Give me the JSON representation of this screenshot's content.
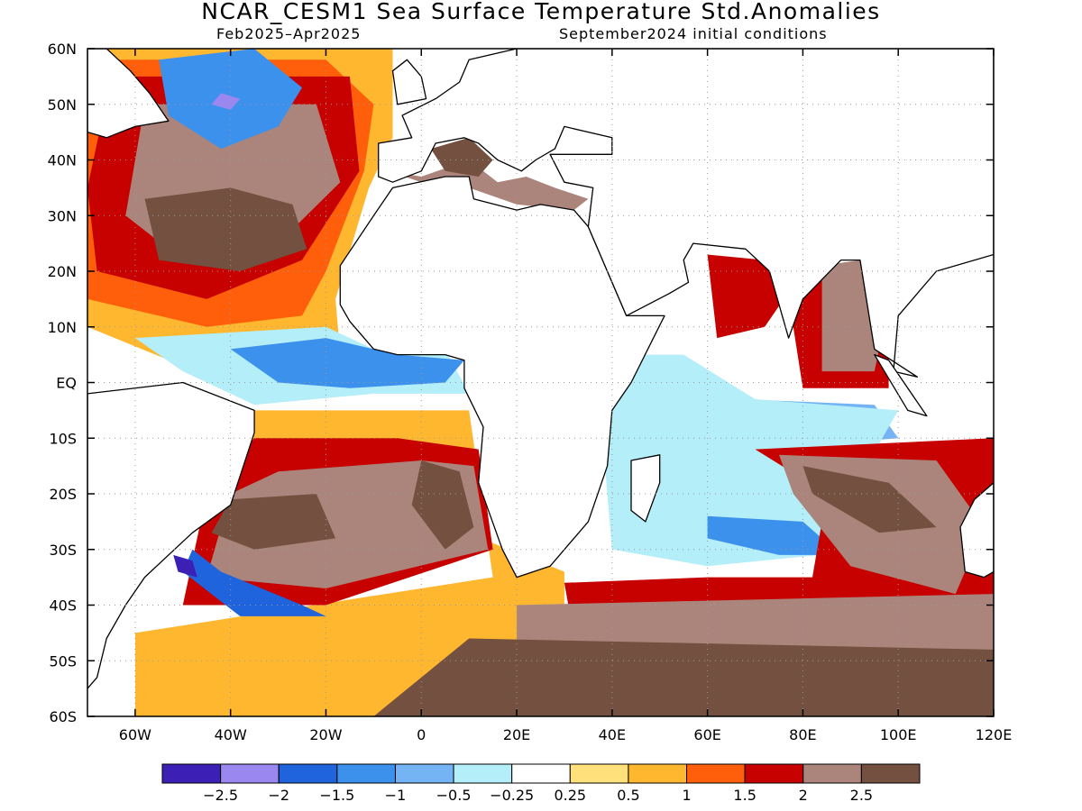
{
  "title": "NCAR_CESM1 Sea Surface Temperature Std.Anomalies",
  "subtitle_left": "Feb2025–Apr2025",
  "subtitle_right": "September2024 initial conditions",
  "map": {
    "lon_range": [
      -70,
      120
    ],
    "lat_range": [
      -60,
      60
    ],
    "lon_ticks": [
      {
        "value": -60,
        "label": "60W"
      },
      {
        "value": -40,
        "label": "40W"
      },
      {
        "value": -20,
        "label": "20W"
      },
      {
        "value": 0,
        "label": "0"
      },
      {
        "value": 20,
        "label": "20E"
      },
      {
        "value": 40,
        "label": "40E"
      },
      {
        "value": 60,
        "label": "60E"
      },
      {
        "value": 80,
        "label": "80E"
      },
      {
        "value": 100,
        "label": "100E"
      },
      {
        "value": 120,
        "label": "120E"
      }
    ],
    "lat_ticks": [
      {
        "value": 60,
        "label": "60N"
      },
      {
        "value": 50,
        "label": "50N"
      },
      {
        "value": 40,
        "label": "40N"
      },
      {
        "value": 30,
        "label": "30N"
      },
      {
        "value": 20,
        "label": "20N"
      },
      {
        "value": 10,
        "label": "10N"
      },
      {
        "value": 0,
        "label": "EQ"
      },
      {
        "value": -10,
        "label": "10S"
      },
      {
        "value": -20,
        "label": "20S"
      },
      {
        "value": -30,
        "label": "30S"
      },
      {
        "value": -40,
        "label": "40S"
      },
      {
        "value": -50,
        "label": "50S"
      },
      {
        "value": -60,
        "label": "60S"
      }
    ],
    "grid": "dotted"
  },
  "colorbar": {
    "colors": [
      "#3c1fb4",
      "#9a87f0",
      "#1f63dd",
      "#3c91ec",
      "#74b4f4",
      "#b3eef9",
      "#ffffff",
      "#ffe07a",
      "#ffb730",
      "#ff5f0a",
      "#c70000",
      "#ab857c",
      "#73503f"
    ],
    "labels": [
      "−2.5",
      "−2",
      "−1.5",
      "−1",
      "−0.5",
      "−0.25",
      "0.25",
      "0.5",
      "1",
      "1.5",
      "2",
      "2.5"
    ]
  },
  "anomaly_regions": [
    {
      "level": "0.5",
      "lonlat": [
        [
          -70,
          60
        ],
        [
          -6,
          60
        ],
        [
          -6,
          44
        ],
        [
          -11,
          35
        ],
        [
          -18,
          15
        ],
        [
          -17,
          5
        ],
        [
          -50,
          3
        ],
        [
          -70,
          10
        ]
      ]
    },
    {
      "level": "1",
      "lonlat": [
        [
          -70,
          58
        ],
        [
          -20,
          58
        ],
        [
          -10,
          50
        ],
        [
          -12,
          38
        ],
        [
          -20,
          20
        ],
        [
          -25,
          12
        ],
        [
          -45,
          10
        ],
        [
          -70,
          15
        ]
      ]
    },
    {
      "level": "1.5",
      "lonlat": [
        [
          -65,
          55
        ],
        [
          -15,
          55
        ],
        [
          -13,
          38
        ],
        [
          -25,
          22
        ],
        [
          -45,
          15
        ],
        [
          -68,
          20
        ],
        [
          -70,
          35
        ]
      ]
    },
    {
      "level": "2",
      "lonlat": [
        [
          -58,
          50
        ],
        [
          -22,
          50
        ],
        [
          -17,
          36
        ],
        [
          -30,
          25
        ],
        [
          -50,
          22
        ],
        [
          -62,
          30
        ]
      ]
    },
    {
      "level": "2.5",
      "lonlat": [
        [
          -58,
          33
        ],
        [
          -40,
          35
        ],
        [
          -27,
          32
        ],
        [
          -24,
          24
        ],
        [
          -38,
          20
        ],
        [
          -55,
          22
        ]
      ]
    },
    {
      "level": "-1",
      "lonlat": [
        [
          -55,
          58
        ],
        [
          -35,
          60
        ],
        [
          -25,
          53
        ],
        [
          -30,
          46
        ],
        [
          -42,
          42
        ],
        [
          -53,
          48
        ]
      ]
    },
    {
      "level": "-2",
      "lonlat": [
        [
          -42,
          52
        ],
        [
          -38,
          51
        ],
        [
          -40,
          49
        ],
        [
          -44,
          50
        ]
      ]
    },
    {
      "level": "-0.25",
      "lonlat": [
        [
          -60,
          8
        ],
        [
          -20,
          10
        ],
        [
          -10,
          6
        ],
        [
          5,
          6
        ],
        [
          10,
          -2
        ],
        [
          -10,
          -2
        ],
        [
          -35,
          -4
        ],
        [
          -50,
          2
        ]
      ]
    },
    {
      "level": "-1",
      "lonlat": [
        [
          -40,
          6
        ],
        [
          -20,
          8
        ],
        [
          -5,
          5
        ],
        [
          9,
          4
        ],
        [
          5,
          0
        ],
        [
          -15,
          -1
        ],
        [
          -30,
          0
        ]
      ]
    },
    {
      "level": "0.5",
      "lonlat": [
        [
          -40,
          -5
        ],
        [
          10,
          -5
        ],
        [
          15,
          -35
        ],
        [
          -60,
          -45
        ],
        [
          -60,
          -60
        ],
        [
          30,
          -60
        ],
        [
          30,
          -34
        ],
        [
          -40,
          -10
        ]
      ]
    },
    {
      "level": "1.5",
      "lonlat": [
        [
          -35,
          -10
        ],
        [
          -5,
          -10
        ],
        [
          12,
          -12
        ],
        [
          15,
          -30
        ],
        [
          -20,
          -40
        ],
        [
          -50,
          -40
        ],
        [
          -45,
          -20
        ]
      ]
    },
    {
      "level": "2",
      "lonlat": [
        [
          -30,
          -16
        ],
        [
          0,
          -14
        ],
        [
          11,
          -15
        ],
        [
          14,
          -30
        ],
        [
          -20,
          -37
        ],
        [
          -45,
          -35
        ],
        [
          -40,
          -20
        ]
      ]
    },
    {
      "level": "2.5",
      "lonlat": [
        [
          -40,
          -21
        ],
        [
          -22,
          -20
        ],
        [
          -18,
          -28
        ],
        [
          -35,
          -30
        ],
        [
          -44,
          -27
        ]
      ]
    },
    {
      "level": "2.5",
      "lonlat": [
        [
          0,
          -14
        ],
        [
          8,
          -16
        ],
        [
          11,
          -26
        ],
        [
          5,
          -30
        ],
        [
          -2,
          -22
        ]
      ]
    },
    {
      "level": "-1.5",
      "lonlat": [
        [
          -48,
          -30
        ],
        [
          -42,
          -34
        ],
        [
          -25,
          -40
        ],
        [
          -20,
          -42
        ],
        [
          -38,
          -42
        ],
        [
          -50,
          -34
        ]
      ]
    },
    {
      "level": "-2.5",
      "lonlat": [
        [
          -52,
          -31
        ],
        [
          -48,
          -32
        ],
        [
          -47,
          -35
        ],
        [
          -51,
          -34
        ]
      ]
    },
    {
      "level": "-0.5",
      "lonlat": [
        [
          40,
          -2
        ],
        [
          95,
          -4
        ],
        [
          100,
          -10
        ],
        [
          70,
          -12
        ],
        [
          50,
          -20
        ],
        [
          40,
          -12
        ]
      ]
    },
    {
      "level": "-0.25",
      "lonlat": [
        [
          40,
          5
        ],
        [
          55,
          5
        ],
        [
          70,
          -3
        ],
        [
          100,
          -5
        ],
        [
          90,
          -20
        ],
        [
          95,
          -30
        ],
        [
          60,
          -33
        ],
        [
          40,
          -30
        ],
        [
          38,
          -10
        ]
      ]
    },
    {
      "level": "-1",
      "lonlat": [
        [
          60,
          -24
        ],
        [
          80,
          -25
        ],
        [
          88,
          -31
        ],
        [
          75,
          -31
        ],
        [
          60,
          -28
        ]
      ]
    },
    {
      "level": "1.5",
      "lonlat": [
        [
          60,
          23
        ],
        [
          72,
          22
        ],
        [
          78,
          10
        ],
        [
          80,
          -1
        ],
        [
          98,
          -1
        ],
        [
          98,
          14
        ],
        [
          92,
          22
        ],
        [
          80,
          20
        ],
        [
          72,
          10
        ],
        [
          62,
          8
        ]
      ]
    },
    {
      "level": "2",
      "lonlat": [
        [
          84,
          21
        ],
        [
          92,
          22
        ],
        [
          97,
          10
        ],
        [
          95,
          2
        ],
        [
          84,
          2
        ]
      ]
    },
    {
      "level": "1.5",
      "lonlat": [
        [
          70,
          -12
        ],
        [
          120,
          -10
        ],
        [
          120,
          -60
        ],
        [
          35,
          -60
        ],
        [
          30,
          -36
        ],
        [
          60,
          -35
        ],
        [
          82,
          -35
        ],
        [
          85,
          -20
        ]
      ]
    },
    {
      "level": "2",
      "lonlat": [
        [
          75,
          -13
        ],
        [
          108,
          -14
        ],
        [
          118,
          -26
        ],
        [
          112,
          -38
        ],
        [
          90,
          -33
        ],
        [
          78,
          -20
        ]
      ]
    },
    {
      "level": "2.5",
      "lonlat": [
        [
          80,
          -15
        ],
        [
          98,
          -18
        ],
        [
          108,
          -26
        ],
        [
          96,
          -27
        ],
        [
          82,
          -20
        ]
      ]
    },
    {
      "level": "2",
      "lonlat": [
        [
          20,
          -40
        ],
        [
          120,
          -38
        ],
        [
          120,
          -60
        ],
        [
          20,
          -60
        ]
      ]
    },
    {
      "level": "2.5",
      "lonlat": [
        [
          10,
          -46
        ],
        [
          120,
          -48
        ],
        [
          120,
          -60
        ],
        [
          -10,
          -60
        ]
      ]
    },
    {
      "level": "2",
      "lonlat": [
        [
          -7,
          38
        ],
        [
          0,
          37
        ],
        [
          10,
          40
        ],
        [
          16,
          36
        ],
        [
          22,
          37
        ],
        [
          28,
          35
        ],
        [
          35,
          33
        ],
        [
          32,
          31
        ],
        [
          20,
          32
        ],
        [
          10,
          35
        ],
        [
          0,
          36
        ]
      ]
    },
    {
      "level": "2.5",
      "lonlat": [
        [
          2,
          42
        ],
        [
          10,
          44
        ],
        [
          15,
          40
        ],
        [
          12,
          37
        ],
        [
          5,
          38
        ]
      ]
    }
  ],
  "land_regions": [
    {
      "name": "africa",
      "lonlat": [
        [
          -17,
          14
        ],
        [
          -17,
          21
        ],
        [
          -10,
          30
        ],
        [
          -6,
          35
        ],
        [
          5,
          37
        ],
        [
          10,
          37
        ],
        [
          11,
          33
        ],
        [
          20,
          31
        ],
        [
          25,
          32
        ],
        [
          32,
          31
        ],
        [
          35,
          28
        ],
        [
          43,
          12
        ],
        [
          51,
          12
        ],
        [
          44,
          0
        ],
        [
          40,
          -5
        ],
        [
          39,
          -15
        ],
        [
          35,
          -25
        ],
        [
          27,
          -33
        ],
        [
          20,
          -35
        ],
        [
          17,
          -30
        ],
        [
          12,
          -18
        ],
        [
          13,
          -8
        ],
        [
          9,
          -1
        ],
        [
          9,
          4
        ],
        [
          5,
          5
        ],
        [
          -5,
          5
        ],
        [
          -10,
          6
        ],
        [
          -15,
          11
        ]
      ]
    },
    {
      "name": "madagascar",
      "lonlat": [
        [
          44,
          -14
        ],
        [
          50,
          -13
        ],
        [
          50,
          -18
        ],
        [
          47,
          -25
        ],
        [
          44,
          -23
        ]
      ]
    },
    {
      "name": "europe",
      "lonlat": [
        [
          -9,
          37
        ],
        [
          -9,
          43
        ],
        [
          -2,
          44
        ],
        [
          -4,
          48
        ],
        [
          3,
          51
        ],
        [
          8,
          54
        ],
        [
          10,
          58
        ],
        [
          20,
          60
        ],
        [
          120,
          60
        ],
        [
          120,
          23
        ],
        [
          108,
          20
        ],
        [
          100,
          12
        ],
        [
          99,
          2
        ],
        [
          104,
          1
        ],
        [
          95,
          6
        ],
        [
          92,
          22
        ],
        [
          88,
          22
        ],
        [
          80,
          15
        ],
        [
          77,
          8
        ],
        [
          73,
          20
        ],
        [
          68,
          24
        ],
        [
          57,
          25
        ],
        [
          55,
          22
        ],
        [
          56,
          18
        ],
        [
          52,
          16
        ],
        [
          43,
          12
        ],
        [
          35,
          28
        ],
        [
          36,
          35
        ],
        [
          30,
          36
        ],
        [
          27,
          41
        ],
        [
          40,
          41
        ],
        [
          40,
          44
        ],
        [
          30,
          46
        ],
        [
          28,
          42
        ],
        [
          24,
          40
        ],
        [
          21,
          38
        ],
        [
          16,
          40
        ],
        [
          12,
          43
        ],
        [
          9,
          44
        ],
        [
          3,
          43
        ],
        [
          0,
          38
        ],
        [
          -6,
          36
        ]
      ]
    },
    {
      "name": "britain",
      "lonlat": [
        [
          -5,
          50
        ],
        [
          1,
          51
        ],
        [
          0,
          55
        ],
        [
          -3,
          58
        ],
        [
          -6,
          56
        ]
      ]
    },
    {
      "name": "south_america",
      "lonlat": [
        [
          -70,
          -2
        ],
        [
          -50,
          0
        ],
        [
          -35,
          -5
        ],
        [
          -35,
          -9
        ],
        [
          -40,
          -22
        ],
        [
          -48,
          -27
        ],
        [
          -58,
          -35
        ],
        [
          -62,
          -40
        ],
        [
          -66,
          -46
        ],
        [
          -68,
          -53
        ],
        [
          -70,
          -55
        ]
      ]
    },
    {
      "name": "north_america",
      "lonlat": [
        [
          -70,
          45
        ],
        [
          -66,
          44
        ],
        [
          -60,
          46
        ],
        [
          -53,
          47
        ],
        [
          -57,
          52
        ],
        [
          -61,
          56
        ],
        [
          -66,
          60
        ],
        [
          -70,
          60
        ]
      ]
    },
    {
      "name": "sumatra",
      "lonlat": [
        [
          95,
          5
        ],
        [
          98,
          4
        ],
        [
          106,
          -6
        ],
        [
          102,
          -5
        ]
      ]
    },
    {
      "name": "australia",
      "lonlat": [
        [
          120,
          -18
        ],
        [
          116,
          -21
        ],
        [
          113,
          -26
        ],
        [
          114,
          -34
        ],
        [
          118,
          -35
        ],
        [
          120,
          -34
        ]
      ]
    }
  ]
}
